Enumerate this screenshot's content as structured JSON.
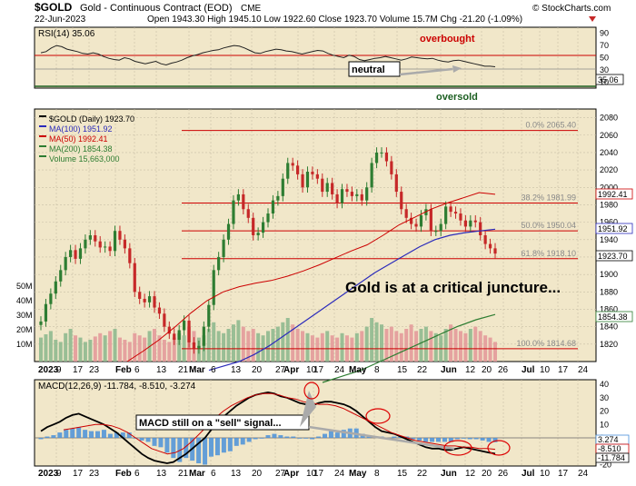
{
  "header": {
    "symbol": "$GOLD",
    "description": "Gold - Continuous Contract (EOD)",
    "exchange": "CME",
    "date": "22-Jun-2023",
    "quote": "Open 1943.30  High 1945.10  Low 1922.60  Close 1923.70  Volume 15.7M  Chg -21.20 (-1.09%)",
    "copyright": "© StockCharts.com"
  },
  "colors": {
    "panel_bg": "#f1e7c9",
    "red_line": "#cc0000",
    "blue_ma": "#2b2bbb",
    "green_ma": "#2e7d32",
    "candle_up": "#2e7d32",
    "candle_down": "#c62828",
    "macd_hist": "#4a90d9"
  },
  "rsi_panel": {
    "title": "RSI(14) 35.06",
    "overbought_label": "overbought",
    "oversold_label": "oversold",
    "neutral_label": "neutral",
    "last_value_tag": "35.06",
    "axis_ticks": [
      "90",
      "70",
      "50",
      "30",
      "10"
    ]
  },
  "price_panel": {
    "legend": [
      "$GOLD (Daily) 1923.70",
      "MA(100) 1951.92",
      "MA(50) 1992.41",
      "MA(200) 1854.38",
      "Volume 15,663,000"
    ],
    "fib_labels": [
      "0.0% 2065.40",
      "38.2% 1981.99",
      "50.0% 1950.04",
      "61.8% 1918.10",
      "100.0% 1814.68"
    ],
    "right_tags": [
      "1992.41",
      "1951.92",
      "1923.70",
      "1854.38"
    ],
    "annotation": "Gold is at a critical juncture...",
    "volume_ticks": [
      "50M",
      "40M",
      "30M",
      "20M",
      "10M"
    ]
  },
  "macd_panel": {
    "title": "MACD(12,26,9) -11.784, -8.510, -3.274",
    "annotation": "MACD still on a \"sell\" signal...",
    "right_tags": [
      "3.274",
      "-8.510",
      "-11.784"
    ],
    "axis_ticks": [
      "40",
      "30",
      "20",
      "10",
      "0",
      "-10",
      "-20"
    ]
  },
  "x_axis_labels": [
    "2023",
    "9",
    "17",
    "23",
    "Feb",
    "6",
    "13",
    "21",
    "Mar",
    "6",
    "13",
    "20",
    "27",
    "Apr",
    "10",
    "17",
    "24",
    "May",
    "8",
    "15",
    "22",
    "Jun",
    "12",
    "20",
    "26",
    "Jul",
    "10",
    "17",
    "24"
  ],
  "chart_data": {
    "type": "line",
    "title": "$GOLD Gold - Continuous Contract (EOD) CME",
    "price_ylim": [
      1800,
      2090
    ],
    "price_ticks": [
      2080,
      2060,
      2040,
      2020,
      2000,
      1980,
      1960,
      1940,
      1920,
      1900,
      1880,
      1860,
      1840,
      1820
    ],
    "fibonacci": [
      {
        "level": "0.0%",
        "value": 2065.4
      },
      {
        "level": "38.2%",
        "value": 1981.99
      },
      {
        "level": "50.0%",
        "value": 1950.04
      },
      {
        "level": "61.8%",
        "value": 1918.1
      },
      {
        "level": "100.0%",
        "value": 1814.68
      }
    ],
    "series": [
      {
        "name": "$GOLD (Daily)",
        "values": [
          1846,
          1866,
          1878,
          1892,
          1905,
          1920,
          1928,
          1918,
          1930,
          1940,
          1945,
          1938,
          1931,
          1932,
          1927,
          1950,
          1940,
          1930,
          1913,
          1880,
          1872,
          1868,
          1875,
          1862,
          1855,
          1840,
          1832,
          1825,
          1836,
          1847,
          1822,
          1815,
          1818,
          1840,
          1865,
          1905,
          1920,
          1940,
          1958,
          1985,
          1992,
          1975,
          1965,
          1945,
          1948,
          1960,
          1970,
          1985,
          1990,
          2010,
          2028,
          2025,
          2015,
          2000,
          2018,
          2015,
          2010,
          1995,
          2005,
          1992,
          1982,
          1998,
          1995,
          1990,
          1992,
          1985,
          2000,
          2028,
          2040,
          2040,
          2030,
          2015,
          1995,
          1975,
          1965,
          1958,
          1955,
          1968,
          1975,
          1950,
          1950,
          1958,
          1978,
          1972,
          1970,
          1962,
          1955,
          1962,
          1960,
          1945,
          1935,
          1930,
          1924
        ]
      },
      {
        "name": "MA(50)",
        "values": [
          1800,
          1812,
          1825,
          1840,
          1856,
          1870,
          1880,
          1886,
          1890,
          1893,
          1898,
          1904,
          1911,
          1919,
          1927,
          1934,
          1945,
          1957,
          1966,
          1975,
          1982,
          1988,
          1994,
          1992
        ]
      },
      {
        "name": "MA(100)",
        "values": [
          1790,
          1795,
          1800,
          1808,
          1818,
          1830,
          1842,
          1854,
          1866,
          1878,
          1890,
          1902,
          1912,
          1922,
          1932,
          1940,
          1945,
          1948,
          1950,
          1952
        ]
      },
      {
        "name": "MA(200)",
        "values": [
          1776,
          1783,
          1790,
          1800,
          1810,
          1820,
          1830,
          1840,
          1848,
          1854
        ]
      },
      {
        "name": "RSI(14)",
        "values": [
          58,
          60,
          66,
          70,
          68,
          64,
          62,
          60,
          57,
          56,
          58,
          56,
          52,
          49,
          47,
          46,
          50,
          48,
          44,
          42,
          40,
          42,
          44,
          40,
          38,
          41,
          43,
          46,
          50,
          53,
          55,
          58,
          60,
          62,
          63,
          66,
          68,
          70,
          69,
          66,
          62,
          58,
          57,
          60,
          62,
          64,
          63,
          61,
          60,
          58,
          56,
          58,
          60,
          62,
          61,
          57,
          54,
          52,
          50,
          54,
          52,
          47,
          45,
          47,
          49,
          50,
          52,
          50,
          48,
          46,
          48,
          51,
          50,
          49,
          48,
          49,
          46,
          44,
          43,
          45,
          46,
          44,
          42,
          40,
          38,
          36,
          36,
          35
        ]
      },
      {
        "name": "MACD",
        "values": [
          5,
          8,
          10,
          12,
          15,
          17,
          18,
          16,
          14,
          12,
          10,
          7,
          4,
          0,
          -4,
          -8,
          -12,
          -15,
          -17,
          -18,
          -19,
          -18,
          -15,
          -12,
          -8,
          -4,
          0,
          6,
          11,
          16,
          20,
          24,
          27,
          30,
          32,
          33,
          34,
          33,
          31,
          30,
          28,
          26,
          25,
          24,
          26,
          27,
          27,
          26,
          25,
          23,
          20,
          16,
          12,
          8,
          5,
          4,
          3,
          1,
          -1,
          -3,
          -5,
          -7,
          -8,
          -8,
          -9,
          -9,
          -8,
          -7,
          -8,
          -9,
          -10,
          -11,
          -11.784
        ]
      },
      {
        "name": "Signal",
        "values": [
          6,
          7,
          8,
          9,
          10,
          10,
          9,
          7,
          4,
          0,
          -4,
          -8,
          -10,
          -12,
          -11,
          -8,
          -3,
          3,
          9,
          15,
          20,
          24,
          27,
          30,
          32,
          33,
          33,
          32,
          30,
          29,
          27,
          26,
          25,
          25,
          24,
          22,
          19,
          16,
          13,
          10,
          7,
          4,
          2,
          0,
          -2,
          -3,
          -4,
          -5,
          -6,
          -6,
          -7,
          -7,
          -8,
          -8,
          -8.51
        ]
      }
    ]
  }
}
